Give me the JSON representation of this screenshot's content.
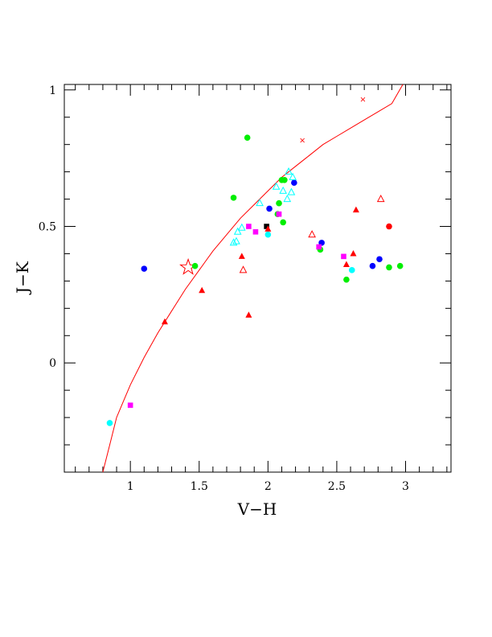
{
  "chart_data": {
    "type": "scatter",
    "title": "",
    "xlabel": "V−H",
    "ylabel": "J−K",
    "xlim": [
      0.52,
      3.33
    ],
    "ylim": [
      -0.4,
      1.02
    ],
    "x_ticks": [
      {
        "value": 1,
        "label": "1"
      },
      {
        "value": 1.5,
        "label": "1.5"
      },
      {
        "value": 2,
        "label": "2"
      },
      {
        "value": 2.5,
        "label": "2.5"
      },
      {
        "value": 3,
        "label": "3"
      }
    ],
    "y_ticks": [
      {
        "value": 0,
        "label": "0"
      },
      {
        "value": 0.5,
        "label": "0.5"
      },
      {
        "value": 1,
        "label": "1"
      }
    ],
    "grid": false,
    "colors": {
      "red": "#ff0000",
      "green": "#00ee00",
      "blue": "#0000ff",
      "cyan": "#00ffff",
      "magenta": "#ff00ff",
      "black": "#000000"
    },
    "curve": {
      "color": "#ff0000",
      "points": [
        [
          0.8,
          -0.4
        ],
        [
          0.85,
          -0.3
        ],
        [
          0.9,
          -0.2
        ],
        [
          0.95,
          -0.14
        ],
        [
          1.0,
          -0.08
        ],
        [
          1.1,
          0.02
        ],
        [
          1.2,
          0.11
        ],
        [
          1.3,
          0.19
        ],
        [
          1.4,
          0.27
        ],
        [
          1.5,
          0.34
        ],
        [
          1.6,
          0.41
        ],
        [
          1.7,
          0.47
        ],
        [
          1.8,
          0.53
        ],
        [
          1.9,
          0.58
        ],
        [
          2.0,
          0.63
        ],
        [
          2.1,
          0.68
        ],
        [
          2.2,
          0.72
        ],
        [
          2.3,
          0.76
        ],
        [
          2.4,
          0.8
        ],
        [
          2.5,
          0.83
        ],
        [
          2.6,
          0.86
        ],
        [
          2.7,
          0.89
        ],
        [
          2.8,
          0.92
        ],
        [
          2.9,
          0.95
        ],
        [
          2.98,
          1.02
        ]
      ]
    },
    "curve_markers": [
      [
        2.25,
        0.815
      ],
      [
        2.69,
        0.965
      ]
    ],
    "star_marker": {
      "x": 1.42,
      "y": 0.35,
      "color": "#ff0000"
    },
    "series": [
      {
        "marker": "circle",
        "color": "#00ee00",
        "points": [
          [
            1.85,
            0.825
          ],
          [
            1.75,
            0.605
          ],
          [
            1.47,
            0.355
          ],
          [
            2.08,
            0.585
          ],
          [
            2.1,
            0.67
          ],
          [
            2.12,
            0.67
          ],
          [
            2.07,
            0.545
          ],
          [
            2.11,
            0.515
          ],
          [
            2.38,
            0.415
          ],
          [
            2.57,
            0.305
          ],
          [
            2.88,
            0.35
          ],
          [
            2.96,
            0.355
          ]
        ]
      },
      {
        "marker": "circle",
        "color": "#0000ff",
        "points": [
          [
            1.1,
            0.345
          ],
          [
            2.01,
            0.565
          ],
          [
            2.19,
            0.66
          ],
          [
            2.39,
            0.44
          ],
          [
            2.76,
            0.355
          ],
          [
            2.81,
            0.38
          ]
        ]
      },
      {
        "marker": "circle",
        "color": "#00ffff",
        "points": [
          [
            0.85,
            -0.22
          ],
          [
            2.0,
            0.47
          ],
          [
            2.61,
            0.34
          ]
        ]
      },
      {
        "marker": "circle",
        "color": "#ff0000",
        "points": [
          [
            2.88,
            0.5
          ]
        ]
      },
      {
        "marker": "square",
        "color": "#ff00ff",
        "points": [
          [
            1.0,
            -0.155
          ],
          [
            1.86,
            0.5
          ],
          [
            1.91,
            0.48
          ],
          [
            2.08,
            0.545
          ],
          [
            2.37,
            0.425
          ],
          [
            2.55,
            0.39
          ]
        ]
      },
      {
        "marker": "square",
        "color": "#000000",
        "points": [
          [
            1.99,
            0.5
          ]
        ]
      },
      {
        "marker": "triangle-filled",
        "color": "#ff0000",
        "points": [
          [
            1.25,
            0.15
          ],
          [
            1.52,
            0.265
          ],
          [
            1.81,
            0.39
          ],
          [
            1.86,
            0.175
          ],
          [
            2.0,
            0.49
          ],
          [
            2.57,
            0.36
          ],
          [
            2.62,
            0.4
          ],
          [
            2.64,
            0.56
          ]
        ]
      },
      {
        "marker": "triangle-open",
        "color": "#ff0000",
        "points": [
          [
            1.82,
            0.34
          ],
          [
            2.32,
            0.47
          ],
          [
            2.82,
            0.6
          ]
        ]
      },
      {
        "marker": "triangle-open",
        "color": "#00ffff",
        "points": [
          [
            1.75,
            0.44
          ],
          [
            1.77,
            0.445
          ],
          [
            1.78,
            0.48
          ],
          [
            1.81,
            0.495
          ],
          [
            1.94,
            0.585
          ],
          [
            2.06,
            0.645
          ],
          [
            2.11,
            0.63
          ],
          [
            2.14,
            0.6
          ],
          [
            2.15,
            0.7
          ],
          [
            2.17,
            0.625
          ],
          [
            2.18,
            0.68
          ]
        ]
      }
    ]
  }
}
